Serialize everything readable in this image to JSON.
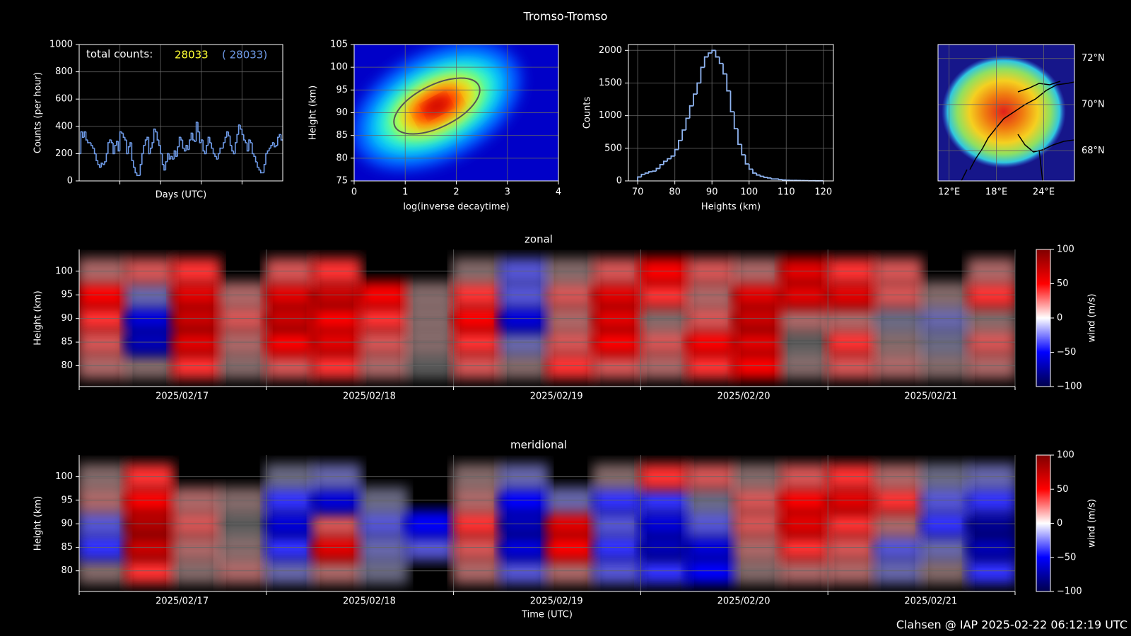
{
  "title": "Tromso-Tromso",
  "footer": "Clahsen @ IAP 2025-02-22 06:12:19 UTC",
  "chart_data": [
    {
      "type": "step",
      "xlabel": "Days (UTC)",
      "ylabel": "Counts (per hour)",
      "color": "#6f9be8",
      "total_label": "total counts:",
      "total": 28033,
      "total_color": "#ffff33",
      "total_paren": "( 28033)",
      "ylim": [
        0,
        1000
      ],
      "yticks": [
        0,
        200,
        400,
        600,
        800,
        1000
      ],
      "grid": true,
      "values": [
        200,
        360,
        320,
        360,
        300,
        280,
        280,
        260,
        240,
        200,
        150,
        120,
        100,
        130,
        120,
        140,
        200,
        280,
        300,
        280,
        200,
        260,
        290,
        220,
        360,
        350,
        320,
        300,
        200,
        250,
        280,
        150,
        100,
        60,
        40,
        40,
        120,
        200,
        260,
        300,
        320,
        200,
        240,
        280,
        380,
        360,
        300,
        260,
        200,
        120,
        80,
        140,
        200,
        160,
        180,
        160,
        220,
        180,
        250,
        320,
        300,
        240,
        220,
        260,
        230,
        300,
        350,
        300,
        290,
        430,
        360,
        280,
        300,
        220,
        200,
        260,
        320,
        280,
        240,
        200,
        180,
        160,
        200,
        240,
        240,
        280,
        320,
        360,
        330,
        260,
        220,
        200,
        280,
        340,
        410,
        380,
        340,
        300,
        280,
        220,
        300,
        280,
        200,
        180,
        140,
        100,
        80,
        60,
        60,
        120,
        200,
        220,
        240,
        260,
        280,
        250,
        260,
        320,
        340,
        300
      ]
    },
    {
      "type": "density",
      "xlabel": "log(inverse decaytime)",
      "ylabel": "Height (km)",
      "xlim": [
        0,
        4
      ],
      "xticks": [
        0,
        1,
        2,
        3,
        4
      ],
      "ylim": [
        75,
        105
      ],
      "yticks": [
        75,
        80,
        85,
        90,
        95,
        100,
        105
      ],
      "grid": true
    },
    {
      "type": "histogram",
      "xlabel": "Heights (km)",
      "ylabel": "Counts",
      "color": "#8fb4f0",
      "xlim": [
        67.5,
        122.7
      ],
      "xticks": [
        70,
        80,
        90,
        100,
        110,
        120
      ],
      "ylim": [
        0,
        2090
      ],
      "yticks": [
        0,
        500,
        1000,
        1500,
        2000
      ],
      "grid": true,
      "bins": [
        70,
        71,
        72,
        73,
        74,
        75,
        76,
        77,
        78,
        79,
        80,
        81,
        82,
        83,
        84,
        85,
        86,
        87,
        88,
        89,
        90,
        91,
        92,
        93,
        94,
        95,
        96,
        97,
        98,
        99,
        100,
        101,
        102,
        103,
        104,
        105,
        106,
        107,
        108,
        109,
        110,
        111,
        112,
        113,
        114,
        115,
        116,
        117,
        118,
        119,
        120
      ],
      "values": [
        60,
        100,
        120,
        140,
        150,
        190,
        250,
        300,
        340,
        380,
        480,
        620,
        780,
        960,
        1150,
        1330,
        1500,
        1740,
        1900,
        1960,
        2000,
        1900,
        1800,
        1640,
        1380,
        1060,
        800,
        560,
        400,
        260,
        180,
        120,
        90,
        70,
        55,
        45,
        30,
        30,
        20,
        15,
        10,
        8,
        8,
        6,
        5,
        4,
        3,
        3,
        2,
        2
      ]
    },
    {
      "type": "map",
      "xlim": [
        10.6,
        27.9
      ],
      "ylim": [
        66.7,
        72.6
      ],
      "grid": true,
      "xticks": [
        {
          "value": 12,
          "label": "12°E"
        },
        {
          "value": 18,
          "label": "18°E"
        },
        {
          "value": 24,
          "label": "24°E"
        }
      ],
      "yticks": [
        {
          "value": 68,
          "label": "68°N"
        },
        {
          "value": 70,
          "label": "70°N"
        },
        {
          "value": 72,
          "label": "72°N"
        }
      ]
    },
    {
      "type": "field",
      "title": "zonal",
      "ylabel": "Height (km)",
      "colorbar_label": "wind (m/s)",
      "categories": [
        "2025/02/17",
        "2025/02/18",
        "2025/02/19",
        "2025/02/20",
        "2025/02/21"
      ],
      "ylim": [
        75.6,
        104.6
      ],
      "yticks": [
        80,
        85,
        90,
        95,
        100
      ],
      "clim": [
        -100,
        100
      ],
      "cticks": [
        {
          "value": -100,
          "label": "−100"
        },
        {
          "value": -50,
          "label": "−50"
        },
        0,
        50,
        100
      ],
      "heights": [
        80,
        85,
        90,
        95,
        100
      ],
      "values": [
        [
          20,
          10,
          40,
          10,
          30,
          40,
          20,
          0,
          30,
          10,
          40,
          30,
          20,
          40,
          50,
          10,
          30,
          20,
          10,
          20
        ],
        [
          30,
          -70,
          60,
          20,
          50,
          60,
          30,
          10,
          40,
          -20,
          30,
          50,
          30,
          50,
          60,
          0,
          40,
          10,
          -10,
          30
        ],
        [
          40,
          -60,
          70,
          30,
          70,
          50,
          40,
          10,
          50,
          -60,
          20,
          60,
          10,
          30,
          70,
          20,
          20,
          -10,
          -20,
          10
        ],
        [
          50,
          -20,
          60,
          20,
          60,
          70,
          50,
          10,
          40,
          -30,
          30,
          60,
          40,
          20,
          60,
          60,
          60,
          30,
          10,
          40
        ],
        [
          20,
          30,
          40,
          null,
          30,
          40,
          null,
          null,
          10,
          -30,
          10,
          30,
          50,
          30,
          20,
          60,
          40,
          30,
          null,
          20
        ]
      ]
    },
    {
      "type": "field",
      "title": "meridional",
      "ylabel": "Height (km)",
      "xlabel": "Time (UTC)",
      "colorbar_label": "wind (m/s)",
      "categories": [
        "2025/02/17",
        "2025/02/18",
        "2025/02/19",
        "2025/02/20",
        "2025/02/21"
      ],
      "ylim": [
        75.6,
        104.6
      ],
      "yticks": [
        80,
        85,
        90,
        95,
        100
      ],
      "clim": [
        -100,
        100
      ],
      "cticks": [
        {
          "value": -100,
          "label": "−100"
        },
        {
          "value": -50,
          "label": "−50"
        },
        0,
        50,
        100
      ],
      "heights": [
        80,
        85,
        90,
        95,
        100
      ],
      "values": [
        [
          10,
          40,
          10,
          20,
          -20,
          20,
          -10,
          null,
          20,
          -30,
          20,
          -30,
          -40,
          -50,
          10,
          20,
          20,
          -20,
          10,
          -40
        ],
        [
          -40,
          70,
          20,
          10,
          -40,
          60,
          -20,
          -30,
          30,
          -60,
          50,
          -40,
          -70,
          -60,
          20,
          40,
          30,
          -30,
          -20,
          -70
        ],
        [
          -30,
          80,
          30,
          0,
          -60,
          30,
          -30,
          -50,
          40,
          -70,
          60,
          -30,
          -60,
          -30,
          30,
          60,
          40,
          20,
          -40,
          -80
        ],
        [
          20,
          50,
          20,
          10,
          -40,
          -60,
          -10,
          null,
          20,
          -50,
          -20,
          -40,
          -40,
          -10,
          30,
          50,
          60,
          40,
          -30,
          -40
        ],
        [
          10,
          40,
          null,
          null,
          -10,
          -20,
          null,
          null,
          10,
          -20,
          null,
          10,
          40,
          30,
          10,
          30,
          40,
          20,
          -10,
          -20
        ]
      ]
    }
  ]
}
